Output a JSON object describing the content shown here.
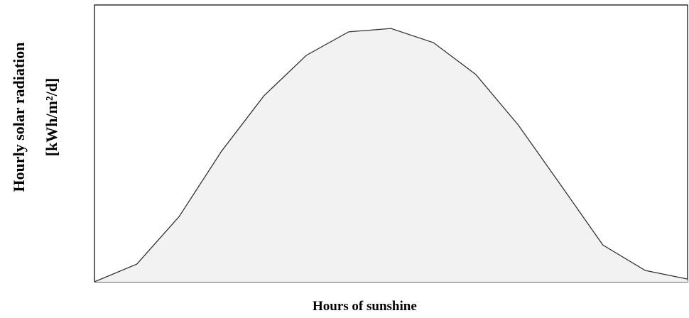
{
  "chart_data": {
    "type": "area",
    "ylabel": [
      "Hourly solar radiation",
      "[kWh/m²/d]"
    ],
    "xlabel": "Hours of sunshine",
    "categories": [
      null,
      null,
      null,
      null,
      null,
      null,
      null,
      null,
      null,
      null,
      null,
      null,
      null,
      null,
      null
    ],
    "values": [
      0,
      6.4,
      23.6,
      47.2,
      67.2,
      81.8,
      90.3,
      91.5,
      86.4,
      74.9,
      56.7,
      35.1,
      13.3,
      4.1,
      1.0
    ],
    "ylim": [
      0,
      100
    ],
    "color": "#333333",
    "fill": "#f2f2f2"
  }
}
